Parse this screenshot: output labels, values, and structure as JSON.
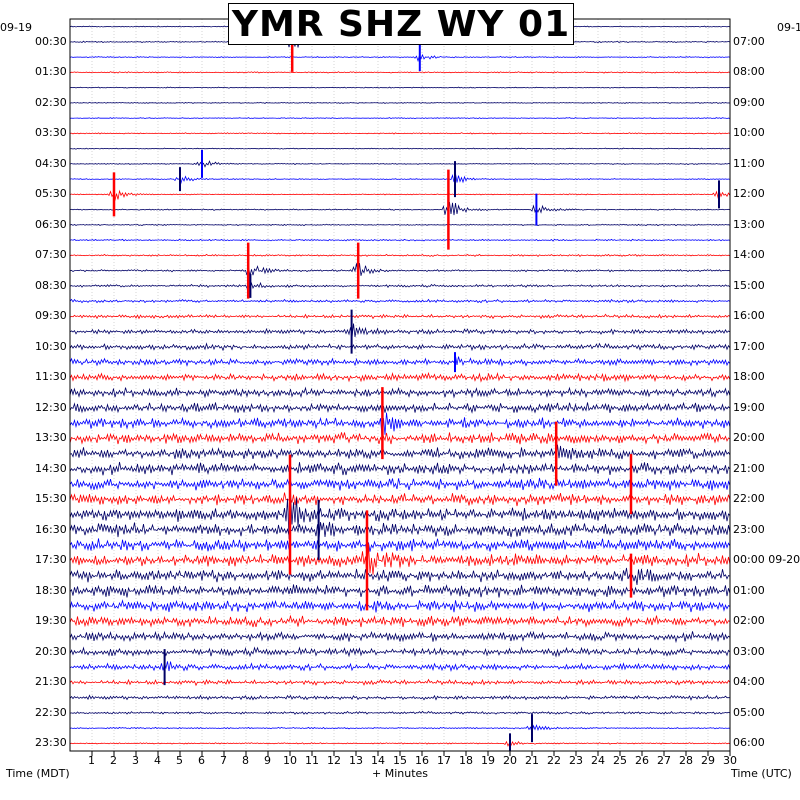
{
  "title": "YMR SHZ WY 01",
  "left_date": "09-19",
  "right_date": "09-1",
  "x_axis_label": "+ Minutes",
  "left_axis_label": "Time (MDT)",
  "right_axis_label": "Time (UTC)",
  "chart_data": {
    "type": "helicorder",
    "title": "YMR SHZ WY 01",
    "xlabel": "+ Minutes",
    "xlim": [
      0,
      30
    ],
    "x_ticks": [
      1,
      2,
      3,
      4,
      5,
      6,
      7,
      8,
      9,
      10,
      11,
      12,
      13,
      14,
      15,
      16,
      17,
      18,
      19,
      20,
      21,
      22,
      23,
      24,
      25,
      26,
      27,
      28,
      29,
      30
    ],
    "left_ylabel": "Time (MDT)",
    "right_ylabel": "Time (UTC)",
    "rows_per_hour": 2,
    "minutes_per_row": 30,
    "trace_colors": [
      "#000066",
      "#ff0000",
      "#0000ff"
    ],
    "left_tick_labels": [
      "00:30",
      "01:30",
      "02:30",
      "03:30",
      "04:30",
      "05:30",
      "06:30",
      "07:30",
      "08:30",
      "09:30",
      "10:30",
      "11:30",
      "12:30",
      "13:30",
      "14:30",
      "15:30",
      "16:30",
      "17:30",
      "18:30",
      "19:30",
      "20:30",
      "21:30",
      "22:30",
      "23:30"
    ],
    "right_tick_labels": [
      "07:00",
      "08:00",
      "09:00",
      "10:00",
      "11:00",
      "12:00",
      "13:00",
      "14:00",
      "15:00",
      "16:00",
      "17:00",
      "18:00",
      "19:00",
      "20:00",
      "21:00",
      "22:00",
      "23:00",
      "00:00 09-20",
      "01:00",
      "02:00",
      "03:00",
      "04:00",
      "05:00",
      "06:00"
    ],
    "row_amplitude_profile": [
      0.4,
      0.5,
      0.4,
      0.5,
      0.4,
      0.4,
      0.4,
      0.5,
      0.4,
      0.4,
      0.4,
      0.4,
      0.5,
      0.5,
      0.6,
      0.7,
      0.8,
      1.0,
      1.2,
      1.5,
      1.8,
      2.2,
      2.6,
      3.0,
      3.4,
      3.8,
      4.0,
      4.2,
      4.4,
      4.6,
      4.6,
      4.8,
      5.0,
      5.0,
      5.0,
      5.0,
      4.8,
      4.6,
      4.4,
      4.0,
      3.6,
      3.0,
      2.6,
      2.0,
      1.5,
      1.0,
      0.6,
      0.5
    ],
    "events": [
      {
        "row": 1,
        "minute": 10.1,
        "amplitude": 30,
        "color": "red"
      },
      {
        "row": 2,
        "minute": 15.9,
        "amplitude": 14,
        "color": "blue"
      },
      {
        "row": 9,
        "minute": 6.0,
        "amplitude": 14,
        "color": "blue"
      },
      {
        "row": 10,
        "minute": 5.0,
        "amplitude": 12,
        "color": "navy"
      },
      {
        "row": 10,
        "minute": 17.5,
        "amplitude": 18,
        "color": "navy"
      },
      {
        "row": 11,
        "minute": 2.0,
        "amplitude": 22,
        "color": "red"
      },
      {
        "row": 11,
        "minute": 29.5,
        "amplitude": 14,
        "color": "navy"
      },
      {
        "row": 12,
        "minute": 17.2,
        "amplitude": 40,
        "color": "red"
      },
      {
        "row": 12,
        "minute": 21.2,
        "amplitude": 16,
        "color": "blue"
      },
      {
        "row": 16,
        "minute": 8.1,
        "amplitude": 28,
        "color": "red"
      },
      {
        "row": 16,
        "minute": 13.1,
        "amplitude": 28,
        "color": "red"
      },
      {
        "row": 17,
        "minute": 8.2,
        "amplitude": 12,
        "color": "navy"
      },
      {
        "row": 20,
        "minute": 12.8,
        "amplitude": 22,
        "color": "navy"
      },
      {
        "row": 22,
        "minute": 17.5,
        "amplitude": 10,
        "color": "blue"
      },
      {
        "row": 26,
        "minute": 14.2,
        "amplitude": 36,
        "color": "red"
      },
      {
        "row": 28,
        "minute": 22.1,
        "amplitude": 32,
        "color": "red"
      },
      {
        "row": 30,
        "minute": 25.5,
        "amplitude": 30,
        "color": "red"
      },
      {
        "row": 32,
        "minute": 10.0,
        "amplitude": 60,
        "color": "red"
      },
      {
        "row": 33,
        "minute": 11.3,
        "amplitude": 30,
        "color": "navy"
      },
      {
        "row": 35,
        "minute": 13.5,
        "amplitude": 50,
        "color": "red"
      },
      {
        "row": 36,
        "minute": 25.5,
        "amplitude": 22,
        "color": "red"
      },
      {
        "row": 42,
        "minute": 4.3,
        "amplitude": 18,
        "color": "navy"
      },
      {
        "row": 46,
        "minute": 21.0,
        "amplitude": 14,
        "color": "navy"
      },
      {
        "row": 47,
        "minute": 20.0,
        "amplitude": 10,
        "color": "navy"
      }
    ]
  }
}
